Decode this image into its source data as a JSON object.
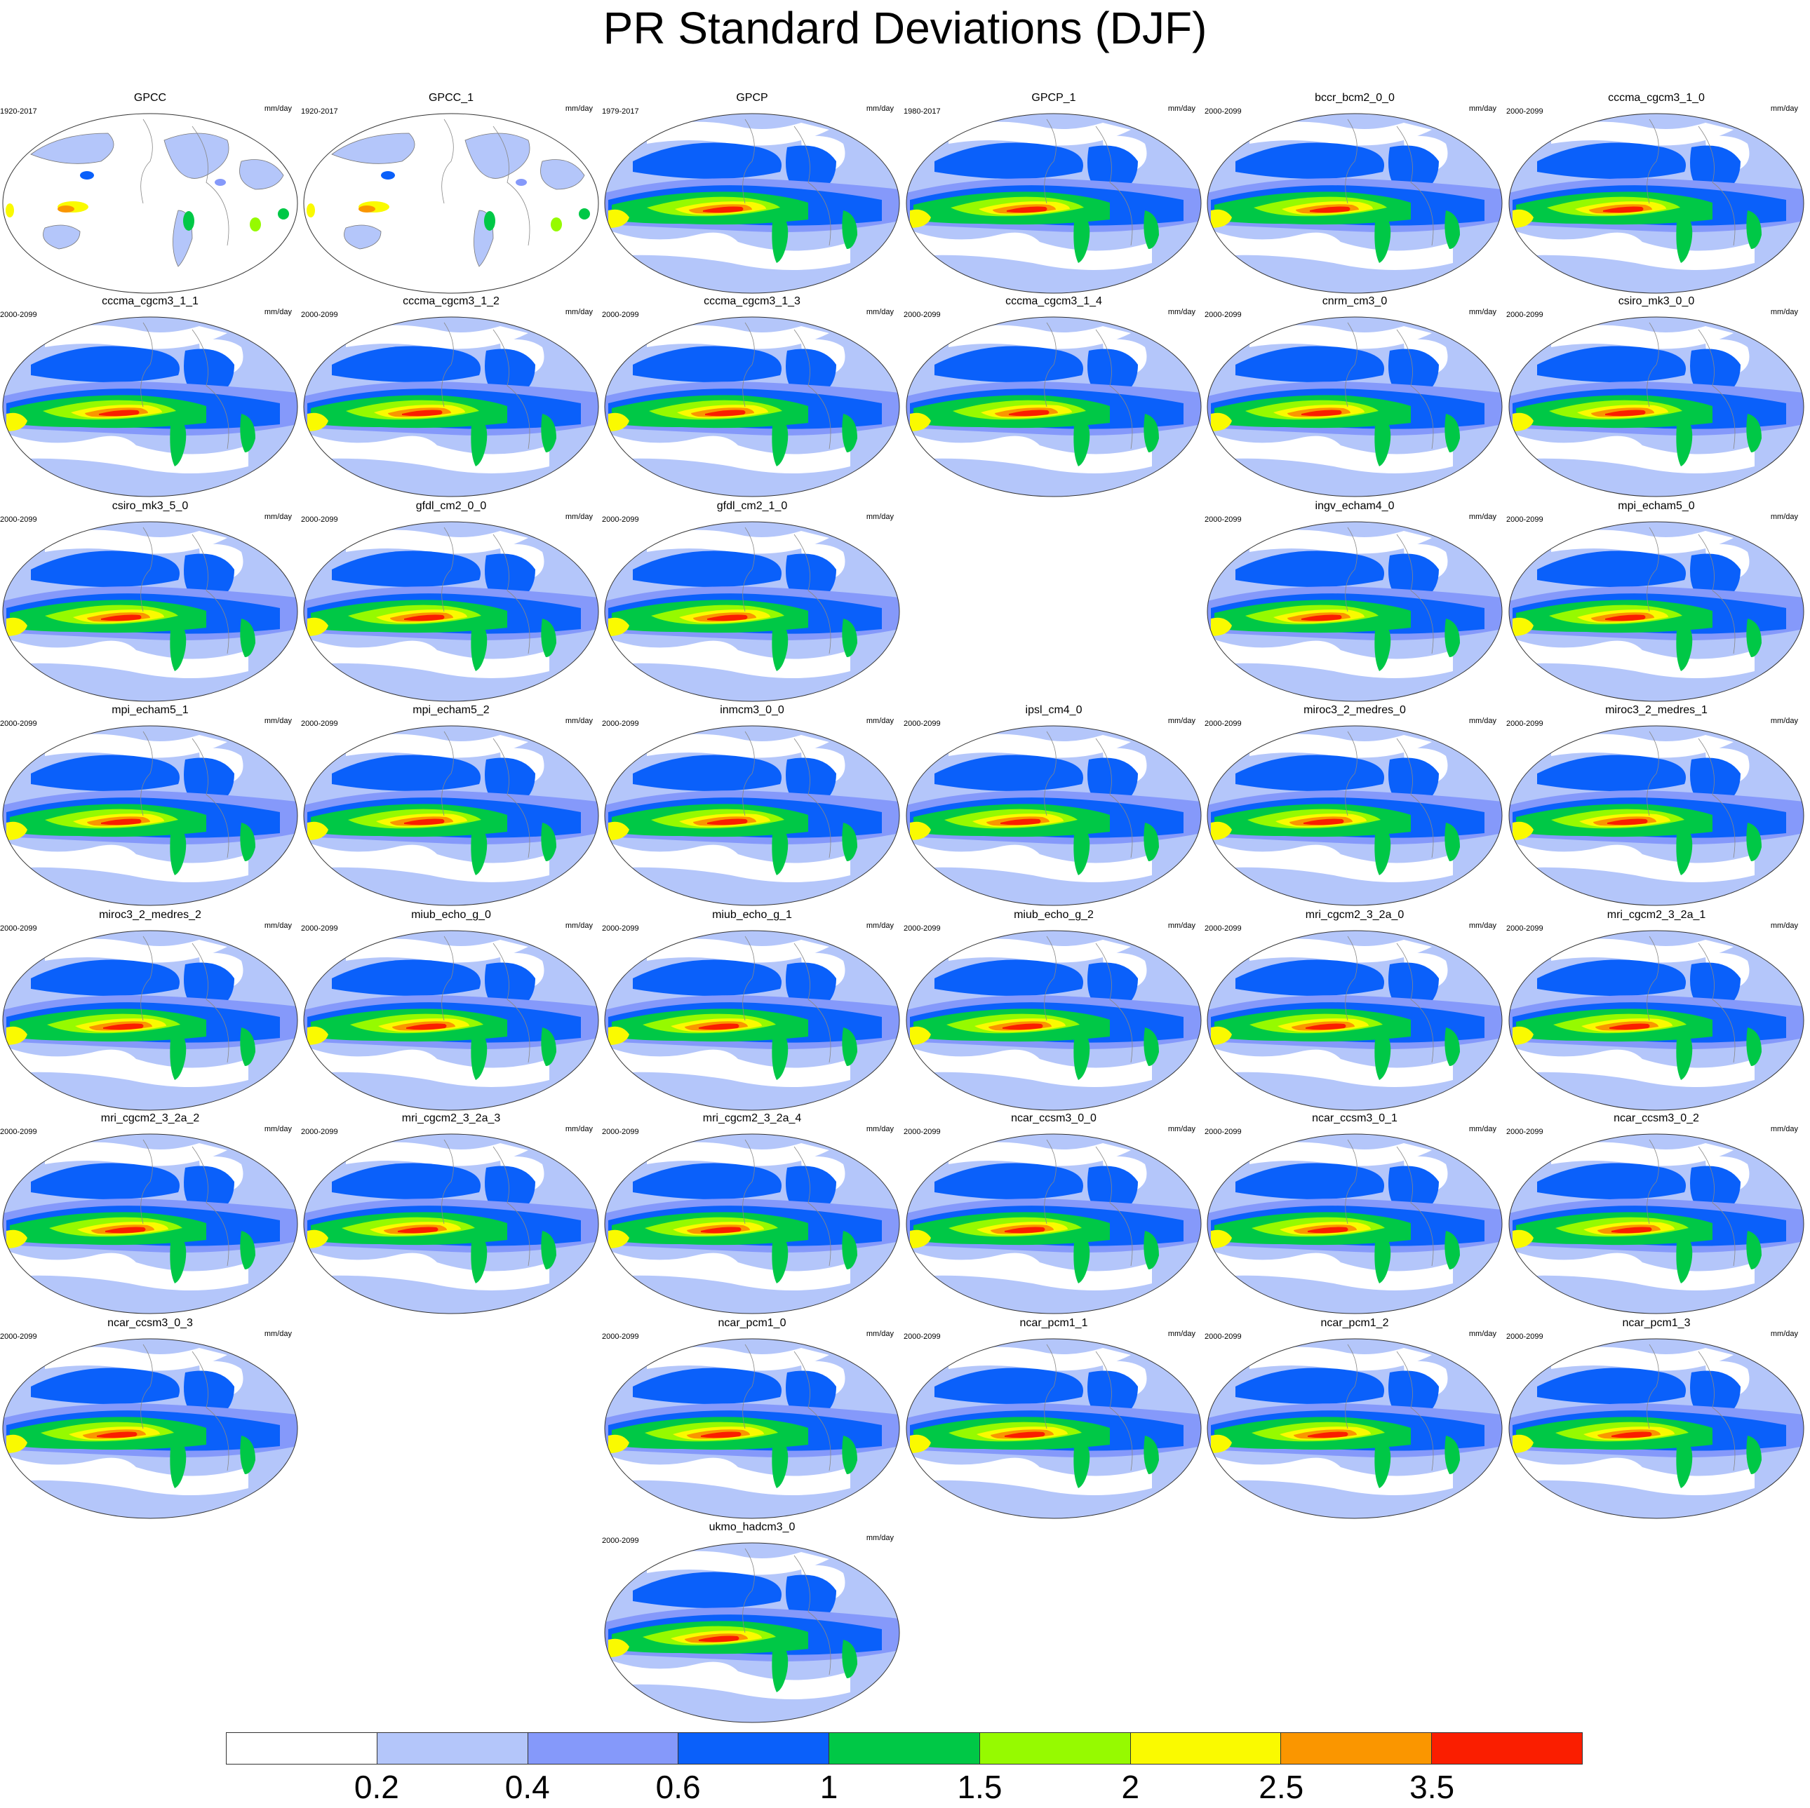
{
  "title": "PR Standard Deviations (DJF)",
  "units": "mm/day",
  "colorbar": {
    "colors": [
      "#ffffff",
      "#b4c6fa",
      "#8599fa",
      "#0a60fa",
      "#00c846",
      "#96fa00",
      "#fafa00",
      "#fa9600",
      "#fa1e00"
    ],
    "labels": [
      "0.2",
      "0.4",
      "0.6",
      "1",
      "1.5",
      "2",
      "2.5",
      "3.5"
    ]
  },
  "panels": [
    {
      "title": "GPCC",
      "period": "1920-2017",
      "kind": "obs"
    },
    {
      "title": "GPCC_1",
      "period": "1920-2017",
      "kind": "obs"
    },
    {
      "title": "GPCP",
      "period": "1979-2017",
      "kind": "model"
    },
    {
      "title": "GPCP_1",
      "period": "1980-2017",
      "kind": "model"
    },
    {
      "title": "bccr_bcm2_0_0",
      "period": "2000-2099",
      "kind": "model"
    },
    {
      "title": "cccma_cgcm3_1_0",
      "period": "2000-2099",
      "kind": "model"
    },
    {
      "title": "cccma_cgcm3_1_1",
      "period": "2000-2099",
      "kind": "model"
    },
    {
      "title": "cccma_cgcm3_1_2",
      "period": "2000-2099",
      "kind": "model"
    },
    {
      "title": "cccma_cgcm3_1_3",
      "period": "2000-2099",
      "kind": "model"
    },
    {
      "title": "cccma_cgcm3_1_4",
      "period": "2000-2099",
      "kind": "model"
    },
    {
      "title": "cnrm_cm3_0",
      "period": "2000-2099",
      "kind": "model"
    },
    {
      "title": "csiro_mk3_0_0",
      "period": "2000-2099",
      "kind": "model"
    },
    {
      "title": "csiro_mk3_5_0",
      "period": "2000-2099",
      "kind": "model"
    },
    {
      "title": "gfdl_cm2_0_0",
      "period": "2000-2099",
      "kind": "model"
    },
    {
      "title": "gfdl_cm2_1_0",
      "period": "2000-2099",
      "kind": "model"
    },
    {
      "title": "ingv_echam4_0",
      "period": "2000-2099",
      "kind": "model"
    },
    {
      "title": "mpi_echam5_0",
      "period": "2000-2099",
      "kind": "model"
    },
    {
      "title": "mpi_echam5_1",
      "period": "2000-2099",
      "kind": "model"
    },
    {
      "title": "mpi_echam5_2",
      "period": "2000-2099",
      "kind": "model"
    },
    {
      "title": "inmcm3_0_0",
      "period": "2000-2099",
      "kind": "model"
    },
    {
      "title": "ipsl_cm4_0",
      "period": "2000-2099",
      "kind": "model"
    },
    {
      "title": "miroc3_2_medres_0",
      "period": "2000-2099",
      "kind": "model"
    },
    {
      "title": "miroc3_2_medres_1",
      "period": "2000-2099",
      "kind": "model"
    },
    {
      "title": "miroc3_2_medres_2",
      "period": "2000-2099",
      "kind": "model"
    },
    {
      "title": "miub_echo_g_0",
      "period": "2000-2099",
      "kind": "model"
    },
    {
      "title": "miub_echo_g_1",
      "period": "2000-2099",
      "kind": "model"
    },
    {
      "title": "miub_echo_g_2",
      "period": "2000-2099",
      "kind": "model"
    },
    {
      "title": "mri_cgcm2_3_2a_0",
      "period": "2000-2099",
      "kind": "model"
    },
    {
      "title": "mri_cgcm2_3_2a_1",
      "period": "2000-2099",
      "kind": "model"
    },
    {
      "title": "mri_cgcm2_3_2a_2",
      "period": "2000-2099",
      "kind": "model"
    },
    {
      "title": "mri_cgcm2_3_2a_3",
      "period": "2000-2099",
      "kind": "model"
    },
    {
      "title": "mri_cgcm2_3_2a_4",
      "period": "2000-2099",
      "kind": "model"
    },
    {
      "title": "ncar_ccsm3_0_0",
      "period": "2000-2099",
      "kind": "model"
    },
    {
      "title": "ncar_ccsm3_0_1",
      "period": "2000-2099",
      "kind": "model"
    },
    {
      "title": "ncar_ccsm3_0_2",
      "period": "2000-2099",
      "kind": "model"
    },
    {
      "title": "ncar_ccsm3_0_3",
      "period": "2000-2099",
      "kind": "model"
    },
    {
      "title": "ncar_pcm1_0",
      "period": "2000-2099",
      "kind": "model"
    },
    {
      "title": "ncar_pcm1_1",
      "period": "2000-2099",
      "kind": "model"
    },
    {
      "title": "ncar_pcm1_2",
      "period": "2000-2099",
      "kind": "model"
    },
    {
      "title": "ncar_pcm1_3",
      "period": "2000-2099",
      "kind": "model"
    },
    {
      "title": "ukmo_hadcm3_0",
      "period": "2000-2099",
      "kind": "model"
    }
  ]
}
